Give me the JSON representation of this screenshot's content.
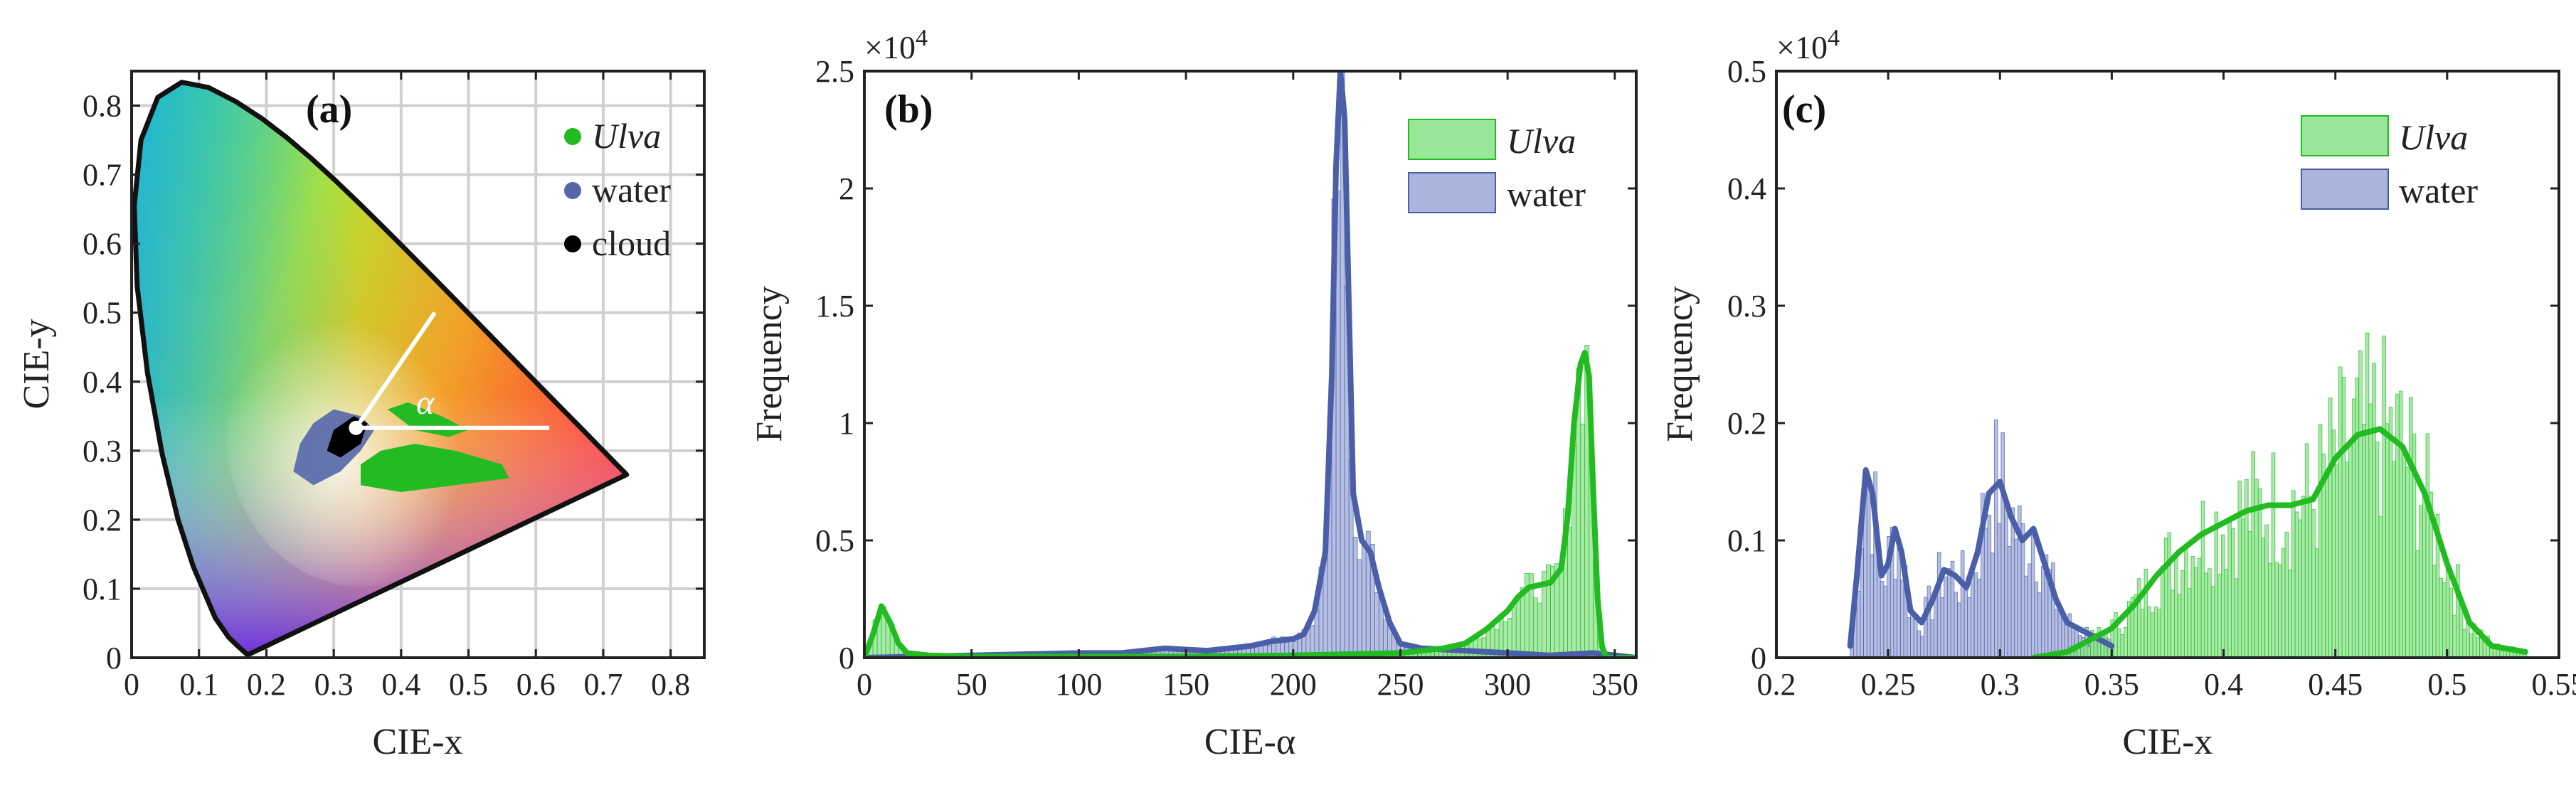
{
  "panels": {
    "a": {
      "label": "(a)",
      "xlabel": "CIE-x",
      "ylabel": "CIE-y",
      "alpha_label": "α",
      "xticks": [
        "0",
        "0.1",
        "0.2",
        "0.3",
        "0.4",
        "0.5",
        "0.6",
        "0.7",
        "0.8"
      ],
      "yticks": [
        "0",
        "0.1",
        "0.2",
        "0.3",
        "0.4",
        "0.5",
        "0.6",
        "0.7",
        "0.8"
      ],
      "legend": [
        {
          "label": "Ulva",
          "italic": true,
          "color": "#22bb22"
        },
        {
          "label": "water",
          "italic": false,
          "color": "#5566aa"
        },
        {
          "label": "cloud",
          "italic": false,
          "color": "#000000"
        }
      ]
    },
    "b": {
      "label": "(b)",
      "xlabel": "CIE-α",
      "ylabel": "Frequency",
      "exponent": "×10",
      "exponent_power": "4",
      "xticks": [
        "0",
        "50",
        "100",
        "150",
        "200",
        "250",
        "300",
        "350"
      ],
      "yticks": [
        "0",
        "0.5",
        "1",
        "1.5",
        "2",
        "2.5"
      ],
      "legend": [
        {
          "label": "Ulva",
          "italic": true
        },
        {
          "label": "water",
          "italic": false
        }
      ]
    },
    "c": {
      "label": "(c)",
      "xlabel": "CIE-x",
      "ylabel": "Frequency",
      "exponent": "×10",
      "exponent_power": "4",
      "xticks": [
        "0.2",
        "0.25",
        "0.3",
        "0.35",
        "0.4",
        "0.45",
        "0.5",
        "0.55"
      ],
      "yticks": [
        "0",
        "0.1",
        "0.2",
        "0.3",
        "0.4",
        "0.5"
      ],
      "legend": [
        {
          "label": "Ulva",
          "italic": true
        },
        {
          "label": "water",
          "italic": false
        }
      ]
    }
  },
  "colors": {
    "ulva_line": "#22bb22",
    "ulva_fill": "#99e699",
    "water_line": "#4a5fa8",
    "water_fill": "#aab4dd",
    "cloud": "#000000",
    "white_lines": "#ffffff"
  },
  "chart_data": [
    {
      "type": "scatter",
      "panel": "a",
      "xlabel": "CIE-x",
      "ylabel": "CIE-y",
      "xlim": [
        0,
        0.85
      ],
      "ylim": [
        0,
        0.85
      ],
      "grid": true,
      "legend_position": "top-right",
      "white_point": [
        0.333,
        0.333
      ],
      "series": [
        {
          "name": "Ulva",
          "color": "#22bb22",
          "region_x": [
            0.33,
            0.56
          ],
          "region_y": [
            0.24,
            0.37
          ]
        },
        {
          "name": "water",
          "color": "#5566aa",
          "region_x": [
            0.24,
            0.37
          ],
          "region_y": [
            0.24,
            0.36
          ]
        },
        {
          "name": "cloud",
          "color": "#000000",
          "region_x": [
            0.29,
            0.35
          ],
          "region_y": [
            0.29,
            0.35
          ]
        }
      ]
    },
    {
      "type": "bar",
      "panel": "b",
      "xlabel": "CIE-α",
      "ylabel": "Frequency",
      "xlim": [
        0,
        360
      ],
      "ylim": [
        0,
        2.5
      ],
      "y_multiplier": 10000,
      "legend_position": "top-right",
      "series": [
        {
          "name": "Ulva",
          "smooth_x": [
            0,
            4,
            8,
            12,
            16,
            20,
            30,
            50,
            100,
            150,
            200,
            250,
            270,
            280,
            290,
            300,
            305,
            310,
            315,
            320,
            325,
            328,
            331,
            334,
            336,
            338,
            340,
            342,
            344,
            346,
            350,
            360
          ],
          "smooth_y": [
            0,
            0.1,
            0.22,
            0.15,
            0.06,
            0.02,
            0.01,
            0.005,
            0.005,
            0.005,
            0.01,
            0.02,
            0.04,
            0.06,
            0.12,
            0.2,
            0.26,
            0.3,
            0.31,
            0.32,
            0.38,
            0.6,
            1.0,
            1.25,
            1.3,
            1.2,
            0.7,
            0.25,
            0.05,
            0,
            0,
            0
          ]
        },
        {
          "name": "water",
          "smooth_x": [
            0,
            50,
            100,
            120,
            140,
            160,
            180,
            190,
            200,
            205,
            210,
            215,
            218,
            220,
            222,
            224,
            226,
            228,
            232,
            236,
            240,
            245,
            250,
            260,
            280,
            300,
            320,
            340,
            360
          ],
          "smooth_y": [
            0,
            0.01,
            0.02,
            0.02,
            0.04,
            0.03,
            0.05,
            0.07,
            0.08,
            0.1,
            0.2,
            0.45,
            1.2,
            2.1,
            2.5,
            2.3,
            1.5,
            0.7,
            0.5,
            0.45,
            0.3,
            0.15,
            0.06,
            0.04,
            0.03,
            0.02,
            0.01,
            0.02,
            0
          ]
        }
      ]
    },
    {
      "type": "bar",
      "panel": "c",
      "xlabel": "CIE-x",
      "ylabel": "Frequency",
      "xlim": [
        0.2,
        0.55
      ],
      "ylim": [
        0,
        0.5
      ],
      "y_multiplier": 10000,
      "legend_position": "top-right",
      "series": [
        {
          "name": "Ulva",
          "smooth_x": [
            0.315,
            0.33,
            0.34,
            0.35,
            0.36,
            0.37,
            0.38,
            0.39,
            0.4,
            0.41,
            0.42,
            0.43,
            0.44,
            0.45,
            0.46,
            0.47,
            0.48,
            0.49,
            0.5,
            0.51,
            0.52,
            0.535
          ],
          "smooth_y": [
            0.0,
            0.005,
            0.015,
            0.025,
            0.045,
            0.07,
            0.09,
            0.105,
            0.115,
            0.125,
            0.13,
            0.13,
            0.135,
            0.17,
            0.19,
            0.195,
            0.18,
            0.14,
            0.08,
            0.03,
            0.01,
            0.005
          ]
        },
        {
          "name": "water",
          "smooth_x": [
            0.233,
            0.236,
            0.24,
            0.243,
            0.247,
            0.25,
            0.253,
            0.256,
            0.26,
            0.265,
            0.27,
            0.275,
            0.28,
            0.285,
            0.29,
            0.295,
            0.3,
            0.305,
            0.31,
            0.315,
            0.32,
            0.325,
            0.33,
            0.34,
            0.35
          ],
          "smooth_y": [
            0.01,
            0.07,
            0.16,
            0.14,
            0.07,
            0.08,
            0.11,
            0.09,
            0.04,
            0.03,
            0.05,
            0.075,
            0.07,
            0.06,
            0.09,
            0.14,
            0.15,
            0.12,
            0.1,
            0.11,
            0.08,
            0.05,
            0.03,
            0.02,
            0.01
          ]
        }
      ]
    }
  ]
}
